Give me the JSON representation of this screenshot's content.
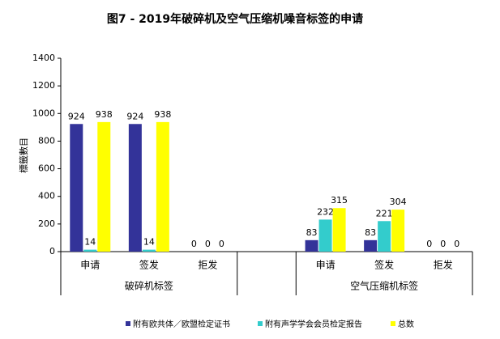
{
  "chart_data": {
    "type": "bar",
    "title": "图7 - 2019年破碎机及空气压缩机噪音标签的申请",
    "y_label": "標籤數目",
    "categories": [
      "申请",
      "签发",
      "拒发",
      null,
      "申请",
      "签发",
      "拒发"
    ],
    "groups": [
      "破碎机标签",
      "空气压缩机标签"
    ],
    "series": [
      {
        "name": "附有欧共体／欧盟检定证书",
        "color": "#333399",
        "values": [
          924,
          924,
          0,
          null,
          83,
          83,
          0
        ]
      },
      {
        "name": "附有声学学会会员检定报告",
        "color": "#33cccc",
        "values": [
          14,
          14,
          0,
          null,
          232,
          221,
          0
        ]
      },
      {
        "name": "总数",
        "color": "#ffff00",
        "values": [
          938,
          938,
          0,
          null,
          315,
          304,
          0
        ]
      }
    ],
    "ylim": [
      0,
      1400
    ],
    "yticks": [
      0,
      200,
      400,
      600,
      800,
      1000,
      1200,
      1400
    ],
    "grid": false,
    "legend": "bottom"
  }
}
